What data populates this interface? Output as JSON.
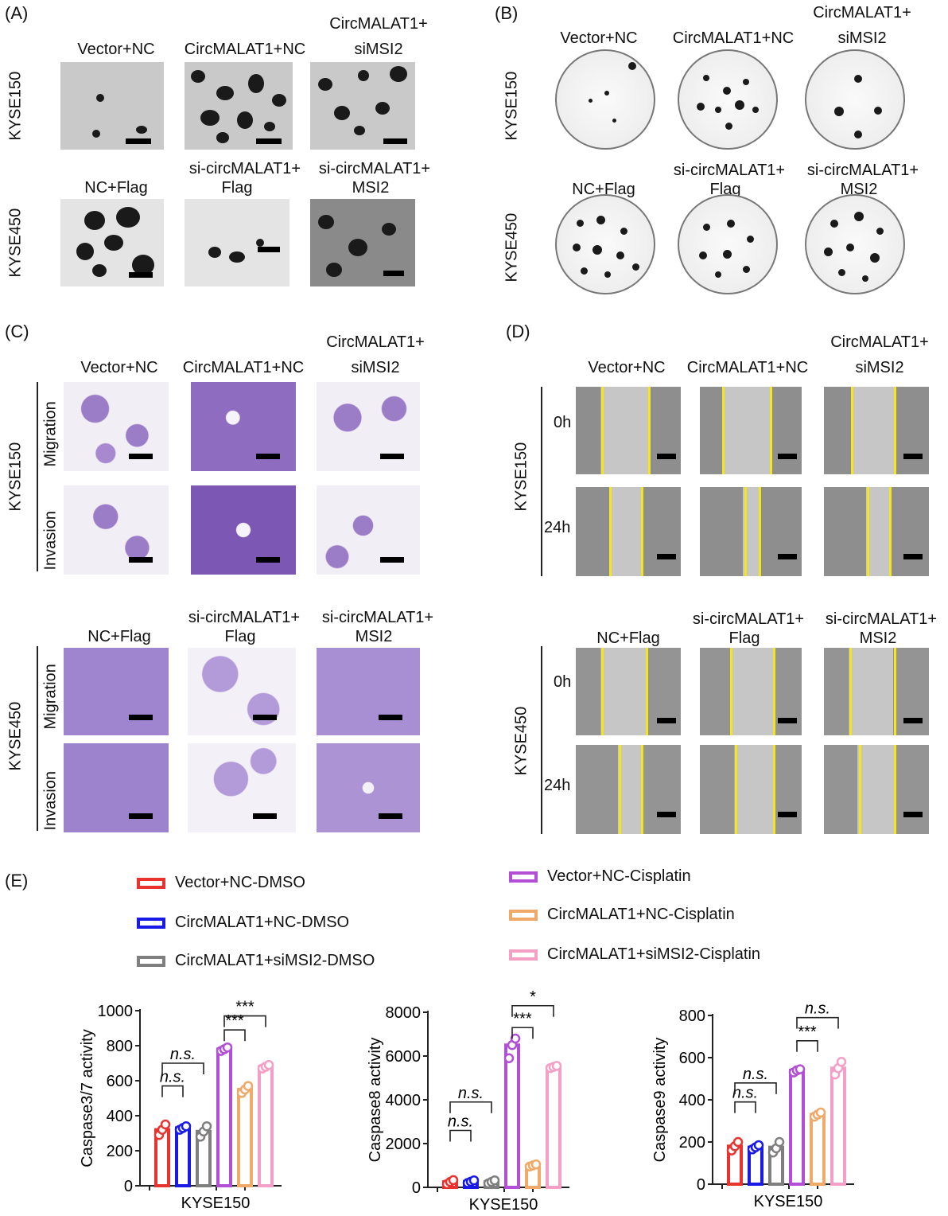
{
  "panel_labels": {
    "A": "(A)",
    "B": "(B)",
    "C": "(C)",
    "D": "(D)",
    "E": "(E)"
  },
  "rows": {
    "kyse150": "KYSE150",
    "kyse450": "KYSE450"
  },
  "groups_top": {
    "g1": "Vector+NC",
    "g2": "CircMALAT1+NC",
    "g3a": "CircMALAT1+",
    "g3b": "siMSI2"
  },
  "groups_bottom": {
    "g1": "NC+Flag",
    "g2a": "si-circMALAT1+",
    "g2b": "Flag",
    "g3a": "si-circMALAT1+",
    "g3b": "MSI2"
  },
  "assays": {
    "migration": "Migration",
    "invasion": "Invasion"
  },
  "times": {
    "t0": "0h",
    "t24": "24h"
  },
  "legend": {
    "items": [
      {
        "label": "Vector+NC-DMSO",
        "color": "#e8332f"
      },
      {
        "label": "CircMALAT1+NC-DMSO",
        "color": "#1a1ae6"
      },
      {
        "label": "CircMALAT1+siMSI2-DMSO",
        "color": "#7f7f7f"
      },
      {
        "label": "Vector+NC-Cisplatin",
        "color": "#b34fd6"
      },
      {
        "label": "CircMALAT1+NC-Cisplatin",
        "color": "#efaa6a"
      },
      {
        "label": "CircMALAT1+siMSI2-Cisplatin",
        "color": "#f4a0c6"
      }
    ]
  },
  "chart_data": [
    {
      "type": "bar",
      "ylabel": "Caspase3/7 activity",
      "xlabel": "KYSE150",
      "ylim": [
        0,
        1000
      ],
      "yticks": [
        0,
        200,
        400,
        600,
        800,
        1000
      ],
      "tick_labels": [
        "0",
        "200",
        "400",
        "600",
        "800",
        "1000"
      ],
      "values": [
        320,
        330,
        310,
        780,
        550,
        680
      ],
      "points": [
        [
          290,
          320,
          350
        ],
        [
          320,
          330,
          340
        ],
        [
          280,
          310,
          340
        ],
        [
          770,
          780,
          790
        ],
        [
          530,
          550,
          570
        ],
        [
          670,
          680,
          690
        ]
      ],
      "annotations": [
        {
          "from": 0,
          "to": 1,
          "text": "n.s.",
          "italic": true,
          "y": 570
        },
        {
          "from": 0,
          "to": 2,
          "text": "n.s.",
          "italic": true,
          "y": 700
        },
        {
          "from": 3,
          "to": 4,
          "text": "***",
          "italic": false,
          "y": 890
        },
        {
          "from": 3,
          "to": 5,
          "text": "***",
          "italic": false,
          "y": 970
        }
      ]
    },
    {
      "type": "bar",
      "ylabel": "Caspase8 activity",
      "xlabel": "KYSE150",
      "ylim": [
        0,
        8000
      ],
      "yticks": [
        0,
        2000,
        4000,
        6000,
        8000
      ],
      "tick_labels": [
        "0",
        "2000",
        "4000",
        "6000",
        "8000"
      ],
      "values": [
        250,
        260,
        250,
        6500,
        1000,
        5500
      ],
      "points": [
        [
          150,
          250,
          330
        ],
        [
          200,
          260,
          320
        ],
        [
          180,
          250,
          320
        ],
        [
          5900,
          6500,
          6800
        ],
        [
          950,
          1000,
          1050
        ],
        [
          5450,
          5500,
          5550
        ]
      ],
      "annotations": [
        {
          "from": 0,
          "to": 1,
          "text": "n.s.",
          "italic": true,
          "y": 2600
        },
        {
          "from": 0,
          "to": 2,
          "text": "n.s.",
          "italic": true,
          "y": 3900
        },
        {
          "from": 3,
          "to": 4,
          "text": "***",
          "italic": false,
          "y": 7300
        },
        {
          "from": 3,
          "to": 5,
          "text": "*",
          "italic": false,
          "y": 8300
        }
      ]
    },
    {
      "type": "bar",
      "ylabel": "Caspase9 activity",
      "xlabel": "KYSE150",
      "ylim": [
        0,
        800
      ],
      "yticks": [
        0,
        200,
        400,
        600,
        800
      ],
      "tick_labels": [
        "0",
        "200",
        "400",
        "600",
        "800"
      ],
      "values": [
        180,
        175,
        175,
        540,
        330,
        550
      ],
      "points": [
        [
          160,
          180,
          200
        ],
        [
          165,
          175,
          185
        ],
        [
          150,
          170,
          200
        ],
        [
          530,
          540,
          545
        ],
        [
          320,
          330,
          340
        ],
        [
          520,
          550,
          580
        ]
      ],
      "annotations": [
        {
          "from": 0,
          "to": 1,
          "text": "n.s.",
          "italic": true,
          "y": 390
        },
        {
          "from": 0,
          "to": 2,
          "text": "n.s.",
          "italic": true,
          "y": 480
        },
        {
          "from": 3,
          "to": 4,
          "text": "***",
          "italic": false,
          "y": 680
        },
        {
          "from": 3,
          "to": 5,
          "text": "n.s.",
          "italic": true,
          "y": 790
        }
      ]
    }
  ]
}
